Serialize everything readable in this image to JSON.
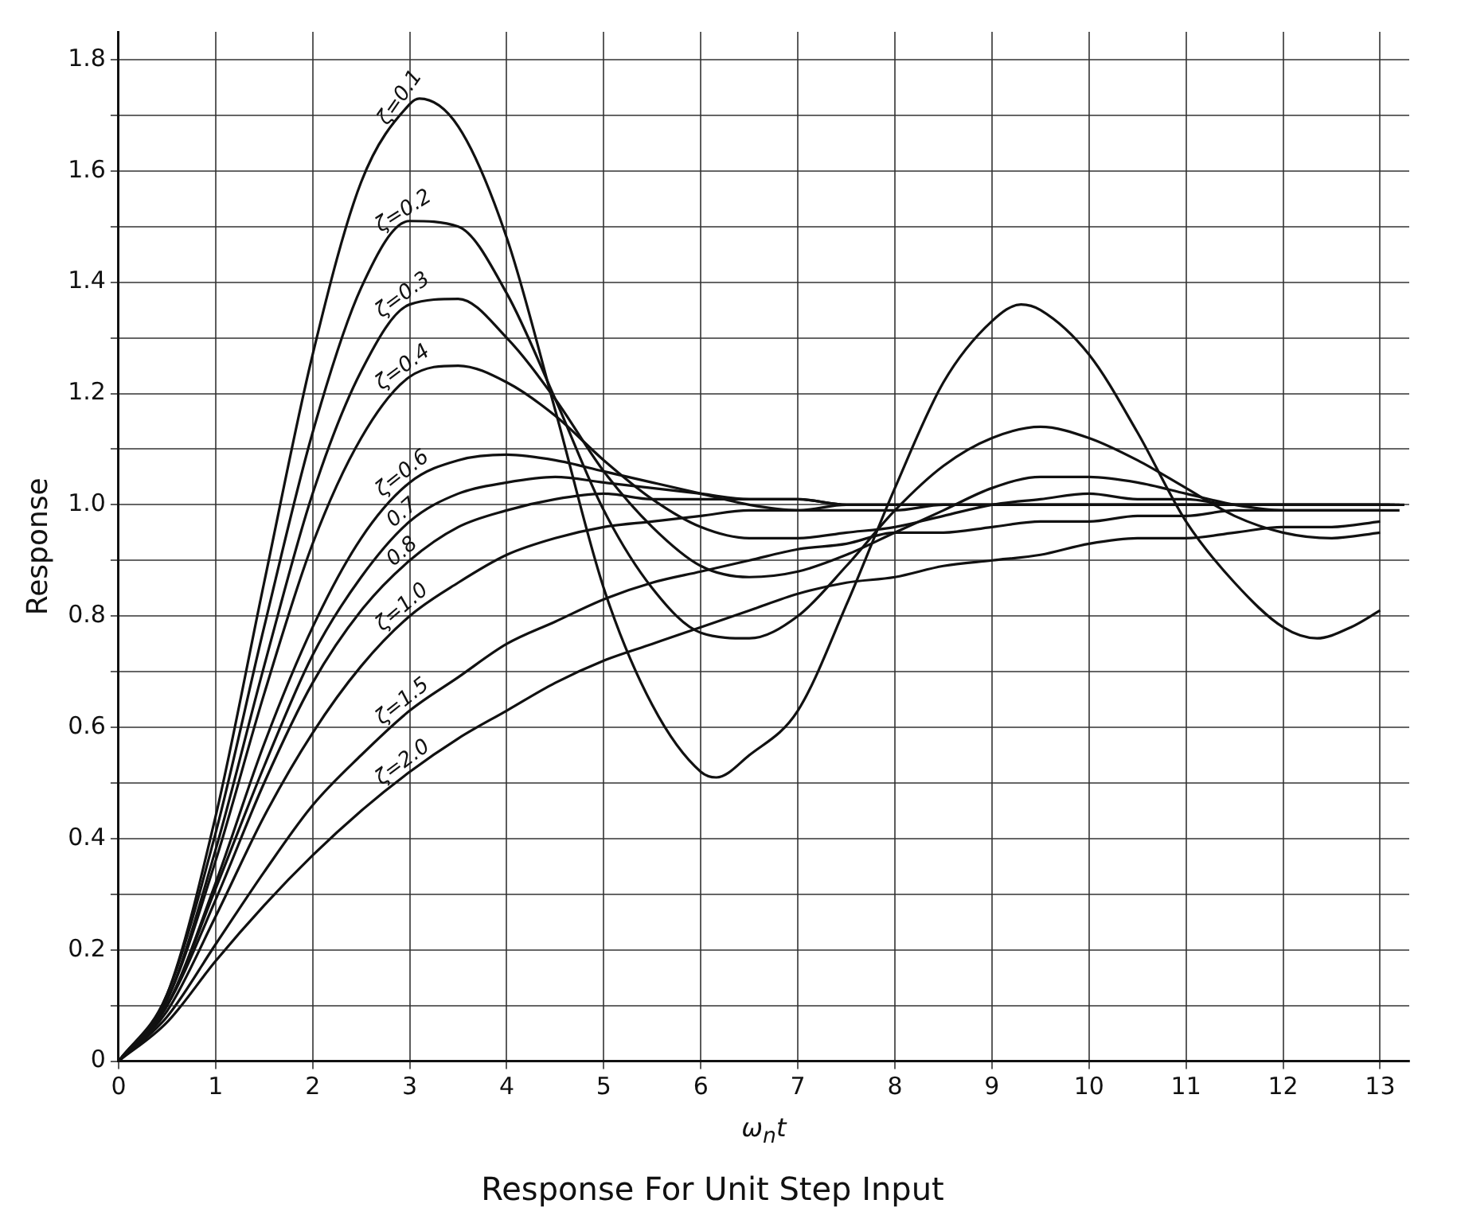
{
  "chart_data": {
    "type": "line",
    "title": "Response For Unit Step Input",
    "xlabel": "ω$_{n}$t",
    "ylabel": "Response",
    "legend": false,
    "grid": true,
    "xlim": [
      0,
      13.3
    ],
    "xticks": [
      0,
      1,
      2,
      3,
      4,
      5,
      6,
      7,
      8,
      9,
      10,
      11,
      12,
      13
    ],
    "ylim": [
      0,
      1.85
    ],
    "yticks": [
      {
        "value": 0,
        "label": "0"
      },
      {
        "value": 0.1,
        "label": null
      },
      {
        "value": 0.2,
        "label": "0.2"
      },
      {
        "value": 0.3,
        "label": null
      },
      {
        "value": 0.4,
        "label": "0.4"
      },
      {
        "value": 0.5,
        "label": null
      },
      {
        "value": 0.6,
        "label": "0.6"
      },
      {
        "value": 0.7,
        "label": null
      },
      {
        "value": 0.8,
        "label": "0.8"
      },
      {
        "value": 0.9,
        "label": null
      },
      {
        "value": 1.0,
        "label": "1.0"
      },
      {
        "value": 1.1,
        "label": null
      },
      {
        "value": 1.2,
        "label": "1.2"
      },
      {
        "value": 1.3,
        "label": null
      },
      {
        "value": 1.4,
        "label": "1.4"
      },
      {
        "value": 1.5,
        "label": null
      },
      {
        "value": 1.6,
        "label": "1.6"
      },
      {
        "value": 1.7,
        "label": null
      },
      {
        "value": 1.8,
        "label": "1.8"
      }
    ],
    "x": [
      0,
      0.5,
      1,
      1.5,
      2,
      2.5,
      3,
      3.5,
      4,
      4.5,
      5,
      5.5,
      6,
      6.5,
      7,
      7.5,
      8,
      8.5,
      9,
      9.5,
      10,
      10.5,
      11,
      11.5,
      12,
      12.5,
      13
    ],
    "series": [
      {
        "name": "ζ=0.1",
        "color": "#111111",
        "x": [
          0,
          0.5,
          1,
          1.5,
          2,
          2.5,
          3,
          3.1,
          3.5,
          4,
          4.5,
          5,
          5.5,
          6,
          6.16,
          6.5,
          7,
          7.5,
          8,
          8.5,
          9,
          9.3,
          9.5,
          10,
          10.5,
          11,
          11.5,
          12,
          12.35,
          12.7,
          13
        ],
        "values": [
          0,
          0.12,
          0.44,
          0.86,
          1.27,
          1.58,
          1.72,
          1.73,
          1.68,
          1.48,
          1.17,
          0.85,
          0.64,
          0.52,
          0.51,
          0.55,
          0.63,
          0.82,
          1.03,
          1.22,
          1.33,
          1.36,
          1.35,
          1.27,
          1.13,
          0.97,
          0.86,
          0.78,
          0.76,
          0.78,
          0.81
        ]
      },
      {
        "name": "ζ=0.2",
        "color": "#111111",
        "values": [
          0,
          0.12,
          0.41,
          0.78,
          1.13,
          1.39,
          1.51,
          1.5,
          1.38,
          1.19,
          0.99,
          0.85,
          0.77,
          0.76,
          0.8,
          0.89,
          0.99,
          1.07,
          1.12,
          1.14,
          1.12,
          1.08,
          1.03,
          0.98,
          0.95,
          0.94,
          0.95
        ]
      },
      {
        "name": "ζ=0.3",
        "color": "#111111",
        "values": [
          0,
          0.11,
          0.38,
          0.71,
          1.02,
          1.24,
          1.36,
          1.37,
          1.3,
          1.19,
          1.06,
          0.96,
          0.89,
          0.87,
          0.88,
          0.91,
          0.95,
          0.99,
          1.03,
          1.05,
          1.05,
          1.04,
          1.02,
          1.0,
          0.99,
          0.99,
          0.99
        ]
      },
      {
        "name": "ζ=0.4",
        "color": "#111111",
        "values": [
          0,
          0.11,
          0.36,
          0.66,
          0.93,
          1.12,
          1.23,
          1.25,
          1.22,
          1.16,
          1.08,
          1.01,
          0.96,
          0.94,
          0.94,
          0.95,
          0.96,
          0.98,
          1.0,
          1.01,
          1.02,
          1.01,
          1.01,
          1.0,
          1.0,
          1.0,
          1.0
        ]
      },
      {
        "name": "ζ=0.6",
        "color": "#111111",
        "x": [
          0,
          0.5,
          1,
          1.5,
          2,
          2.5,
          3,
          3.5,
          4,
          4.5,
          5,
          5.5,
          6,
          6.5,
          7,
          7.5,
          8,
          8.5,
          9,
          9.5,
          10,
          10.5,
          11,
          11.5,
          12,
          12.5,
          13,
          13.1
        ],
        "values": [
          0,
          0.1,
          0.32,
          0.57,
          0.78,
          0.94,
          1.04,
          1.08,
          1.09,
          1.08,
          1.06,
          1.04,
          1.02,
          1.0,
          0.99,
          0.99,
          0.99,
          1.0,
          1.0,
          1.0,
          1.0,
          1.0,
          1.0,
          1.0,
          1.0,
          1.0,
          1.0,
          1.0
        ]
      },
      {
        "name": "0.7",
        "color": "#111111",
        "x": [
          0,
          0.5,
          1,
          1.5,
          2,
          2.5,
          3,
          3.5,
          4,
          4.5,
          5,
          5.5,
          6,
          6.5,
          7,
          7.5,
          8,
          8.5,
          9,
          9.5,
          10,
          10.5,
          11,
          11.5,
          12,
          12.5,
          13,
          13.2
        ],
        "values": [
          0,
          0.1,
          0.31,
          0.53,
          0.73,
          0.87,
          0.97,
          1.02,
          1.04,
          1.05,
          1.04,
          1.03,
          1.02,
          1.01,
          1.01,
          1.0,
          1.0,
          1.0,
          1.0,
          1.0,
          1.0,
          1.0,
          1.0,
          1.0,
          1.0,
          1.0,
          1.0,
          1.0
        ]
      },
      {
        "name": "0.8",
        "color": "#111111",
        "x": [
          0,
          0.5,
          1,
          1.5,
          2,
          2.5,
          3,
          3.5,
          4,
          4.5,
          5,
          5.5,
          6,
          6.5,
          7,
          7.5,
          8,
          8.5,
          9,
          9.5,
          10,
          10.5,
          11,
          11.5,
          12,
          12.5,
          13,
          13.15
        ],
        "values": [
          0,
          0.1,
          0.29,
          0.5,
          0.68,
          0.81,
          0.9,
          0.96,
          0.99,
          1.01,
          1.02,
          1.01,
          1.01,
          1.01,
          1.01,
          1.0,
          1.0,
          1.0,
          1.0,
          1.0,
          1.0,
          1.0,
          1.0,
          1.0,
          1.0,
          1.0,
          1.0,
          1.0
        ]
      },
      {
        "name": "ζ=1.0",
        "color": "#111111",
        "x": [
          0,
          0.5,
          1,
          1.5,
          2,
          2.5,
          3,
          3.5,
          4,
          4.5,
          5,
          5.5,
          6,
          6.5,
          7,
          7.5,
          8,
          8.5,
          9,
          9.5,
          10,
          10.5,
          11,
          11.5,
          12,
          12.5,
          13,
          13.25
        ],
        "values": [
          0,
          0.09,
          0.26,
          0.44,
          0.59,
          0.71,
          0.8,
          0.86,
          0.91,
          0.94,
          0.96,
          0.97,
          0.98,
          0.99,
          0.99,
          1.0,
          1.0,
          1.0,
          1.0,
          1.0,
          1.0,
          1.0,
          1.0,
          1.0,
          1.0,
          1.0,
          1.0,
          1.0
        ]
      },
      {
        "name": "ζ=1.5",
        "color": "#111111",
        "x": [
          0,
          0.5,
          1,
          1.5,
          2,
          2.5,
          3,
          3.5,
          4,
          4.5,
          5,
          5.5,
          6,
          6.5,
          7,
          7.5,
          8,
          8.5,
          9,
          9.5,
          10,
          10.5,
          11,
          11.5,
          12,
          12.5,
          13,
          13.2
        ],
        "values": [
          0,
          0.08,
          0.21,
          0.34,
          0.46,
          0.55,
          0.63,
          0.69,
          0.75,
          0.79,
          0.83,
          0.86,
          0.88,
          0.9,
          0.92,
          0.93,
          0.95,
          0.95,
          0.96,
          0.97,
          0.97,
          0.98,
          0.98,
          0.99,
          0.99,
          0.99,
          0.99,
          0.99
        ]
      },
      {
        "name": "ζ=2.0",
        "color": "#111111",
        "values": [
          0,
          0.07,
          0.18,
          0.28,
          0.37,
          0.45,
          0.52,
          0.58,
          0.63,
          0.68,
          0.72,
          0.75,
          0.78,
          0.81,
          0.84,
          0.86,
          0.87,
          0.89,
          0.9,
          0.91,
          0.93,
          0.94,
          0.94,
          0.95,
          0.96,
          0.96,
          0.97
        ]
      }
    ]
  }
}
